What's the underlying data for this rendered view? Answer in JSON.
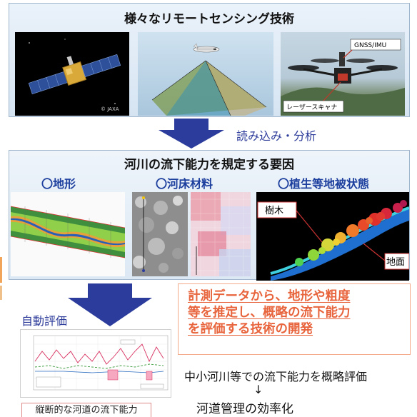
{
  "top_panel": {
    "title": "様々なリモートセンシング技術",
    "satellite_credit": "© JAXA",
    "drone_labels": {
      "gnss": "GNSS/IMU",
      "scanner": "レーザースキャナ"
    }
  },
  "flow": {
    "read_label": "読み込み・分析",
    "auto_label": "自動評価"
  },
  "mid_panel": {
    "title": "河川の流下能力を規定する要因",
    "categories": [
      "〇地形",
      "〇河床材料",
      "〇植生等地被状態"
    ],
    "lidar_labels": {
      "trees": "樹木",
      "ground": "地面"
    }
  },
  "development_box": {
    "lines": [
      "計測データから、地形や粗度",
      "等を推定し、概略の流下能力",
      "を評価する技術の開発"
    ]
  },
  "chart": {
    "caption": "縦断的な河道の流下能力"
  },
  "summary": {
    "line1": "中小河川等での流下能力を概略評価",
    "arrow": "↓",
    "line2": "河道管理の効率化"
  },
  "colors": {
    "accent_blue": "#1d3f9e",
    "accent_orange": "#e8643c",
    "arrow_blue": "#2b3c9c",
    "panel_fill": "#dce8f4"
  },
  "icons": [
    "satellite-icon",
    "aircraft-icon",
    "drone-icon",
    "down-arrow-icon"
  ]
}
